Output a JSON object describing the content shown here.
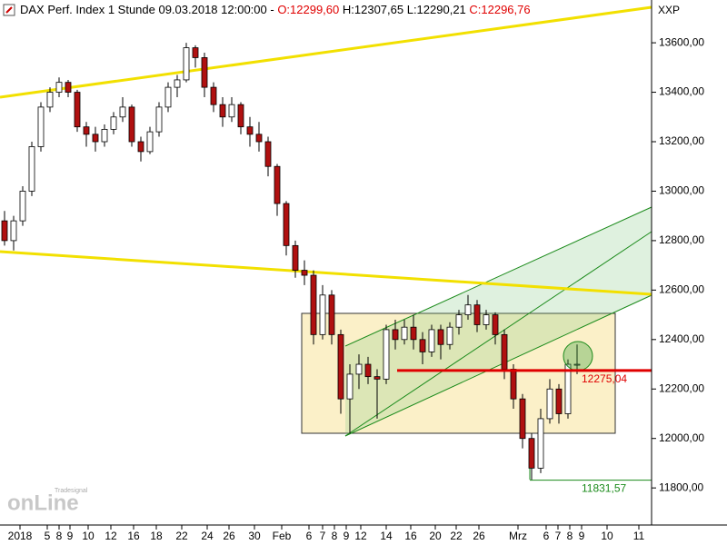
{
  "chart_data": {
    "type": "candlestick",
    "title_parts": [
      {
        "text": "DAX Perf. Index 1 Stunde  09.03.2018 12:00:00 - ",
        "color": "#000000"
      },
      {
        "text": "O:12299,60",
        "color": "#e00000"
      },
      {
        "text": " H:12307,65 L:12290,21 ",
        "color": "#000000"
      },
      {
        "text": "C:12296,76",
        "color": "#e00000"
      }
    ],
    "axis_name": "XXP",
    "logo": {
      "brand": "Tradesignal",
      "text": "onLine"
    },
    "up_color": "#ffffff",
    "down_color": "#b01010",
    "ylim": [
      11650,
      13773
    ],
    "yticks": [
      {
        "value": 11800,
        "label": "11800,00"
      },
      {
        "value": 12000,
        "label": "12000,00"
      },
      {
        "value": 12200,
        "label": "12200,00"
      },
      {
        "value": 12400,
        "label": "12400,00"
      },
      {
        "value": 12600,
        "label": "12600,00"
      },
      {
        "value": 12800,
        "label": "12800,00"
      },
      {
        "value": 13000,
        "label": "13000,00"
      },
      {
        "value": 13200,
        "label": "13200,00"
      },
      {
        "value": 13400,
        "label": "13400,00"
      },
      {
        "value": 13600,
        "label": "13600,00"
      }
    ],
    "xlim": [
      -0.5,
      71.2
    ],
    "xticks": [
      {
        "value": 1.7,
        "label": "2018"
      },
      {
        "value": 4.7,
        "label": "5"
      },
      {
        "value": 6,
        "label": "8"
      },
      {
        "value": 7.2,
        "label": "9"
      },
      {
        "value": 9.2,
        "label": "10"
      },
      {
        "value": 11.7,
        "label": "12"
      },
      {
        "value": 14.2,
        "label": "16"
      },
      {
        "value": 16.7,
        "label": "18"
      },
      {
        "value": 19.5,
        "label": "22"
      },
      {
        "value": 22.3,
        "label": "24"
      },
      {
        "value": 24.7,
        "label": "26"
      },
      {
        "value": 27.5,
        "label": "30"
      },
      {
        "value": 30.5,
        "label": "Feb"
      },
      {
        "value": 33.5,
        "label": "6"
      },
      {
        "value": 35,
        "label": "7"
      },
      {
        "value": 36.3,
        "label": "8"
      },
      {
        "value": 37.6,
        "label": "9"
      },
      {
        "value": 39.2,
        "label": "12"
      },
      {
        "value": 42,
        "label": "14"
      },
      {
        "value": 44.7,
        "label": "16"
      },
      {
        "value": 47.4,
        "label": "20"
      },
      {
        "value": 49.7,
        "label": "22"
      },
      {
        "value": 52.2,
        "label": "26"
      },
      {
        "value": 56.5,
        "label": "Mrz"
      },
      {
        "value": 59.6,
        "label": "6"
      },
      {
        "value": 60.9,
        "label": "7"
      },
      {
        "value": 62.2,
        "label": "8"
      },
      {
        "value": 63.5,
        "label": "9"
      },
      {
        "value": 66.3,
        "label": "10"
      },
      {
        "value": 69.8,
        "label": "11"
      }
    ],
    "ohlc": [
      [
        12880,
        12920,
        12780,
        12800
      ],
      [
        12800,
        12900,
        12760,
        12880
      ],
      [
        12880,
        13020,
        12860,
        13000
      ],
      [
        13000,
        13200,
        12980,
        13180
      ],
      [
        13180,
        13360,
        13160,
        13340
      ],
      [
        13340,
        13420,
        13320,
        13400
      ],
      [
        13400,
        13460,
        13380,
        13440
      ],
      [
        13440,
        13450,
        13380,
        13400
      ],
      [
        13400,
        13410,
        13240,
        13260
      ],
      [
        13260,
        13280,
        13180,
        13230
      ],
      [
        13230,
        13260,
        13160,
        13200
      ],
      [
        13200,
        13270,
        13180,
        13250
      ],
      [
        13250,
        13320,
        13230,
        13300
      ],
      [
        13300,
        13380,
        13280,
        13340
      ],
      [
        13340,
        13350,
        13180,
        13200
      ],
      [
        13200,
        13220,
        13120,
        13160
      ],
      [
        13160,
        13260,
        13150,
        13240
      ],
      [
        13240,
        13360,
        13220,
        13340
      ],
      [
        13340,
        13440,
        13320,
        13420
      ],
      [
        13420,
        13470,
        13380,
        13450
      ],
      [
        13450,
        13600,
        13440,
        13580
      ],
      [
        13580,
        13590,
        13500,
        13540
      ],
      [
        13540,
        13560,
        13380,
        13420
      ],
      [
        13420,
        13440,
        13320,
        13350
      ],
      [
        13350,
        13380,
        13260,
        13300
      ],
      [
        13300,
        13380,
        13280,
        13350
      ],
      [
        13350,
        13360,
        13230,
        13260
      ],
      [
        13260,
        13300,
        13180,
        13230
      ],
      [
        13230,
        13280,
        13160,
        13200
      ],
      [
        13200,
        13220,
        13060,
        13100
      ],
      [
        13100,
        13110,
        12900,
        12950
      ],
      [
        12950,
        12960,
        12740,
        12780
      ],
      [
        12780,
        12800,
        12650,
        12680
      ],
      [
        12680,
        12720,
        12620,
        12660
      ],
      [
        12660,
        12680,
        12380,
        12420
      ],
      [
        12420,
        12620,
        12400,
        12580
      ],
      [
        12580,
        12600,
        12380,
        12420
      ],
      [
        12420,
        12440,
        12100,
        12160
      ],
      [
        12160,
        12300,
        12020,
        12260
      ],
      [
        12260,
        12340,
        12200,
        12300
      ],
      [
        12300,
        12330,
        12220,
        12250
      ],
      [
        12250,
        12280,
        12080,
        12240
      ],
      [
        12240,
        12460,
        12220,
        12440
      ],
      [
        12440,
        12480,
        12360,
        12400
      ],
      [
        12400,
        12480,
        12380,
        12450
      ],
      [
        12450,
        12500,
        12360,
        12400
      ],
      [
        12400,
        12430,
        12300,
        12350
      ],
      [
        12350,
        12460,
        12330,
        12440
      ],
      [
        12440,
        12460,
        12320,
        12380
      ],
      [
        12380,
        12470,
        12360,
        12450
      ],
      [
        12450,
        12520,
        12420,
        12500
      ],
      [
        12500,
        12580,
        12480,
        12540
      ],
      [
        12540,
        12560,
        12430,
        12460
      ],
      [
        12460,
        12520,
        12440,
        12500
      ],
      [
        12500,
        12510,
        12380,
        12420
      ],
      [
        12420,
        12440,
        12240,
        12280
      ],
      [
        12280,
        12300,
        12120,
        12160
      ],
      [
        12160,
        12180,
        11960,
        12000
      ],
      [
        12000,
        12020,
        11831,
        11880
      ],
      [
        11880,
        12120,
        11860,
        12080
      ],
      [
        12080,
        12240,
        12060,
        12200
      ],
      [
        12200,
        12220,
        12060,
        12100
      ],
      [
        12100,
        12320,
        12080,
        12300
      ],
      [
        12300,
        12380,
        12260,
        12300
      ]
    ],
    "levels": [
      {
        "label": "12275,04",
        "value": 12275.04,
        "color": "#e00000"
      },
      {
        "label": "11831,57",
        "value": 11831.57,
        "color": "#1a8a1a"
      }
    ]
  }
}
